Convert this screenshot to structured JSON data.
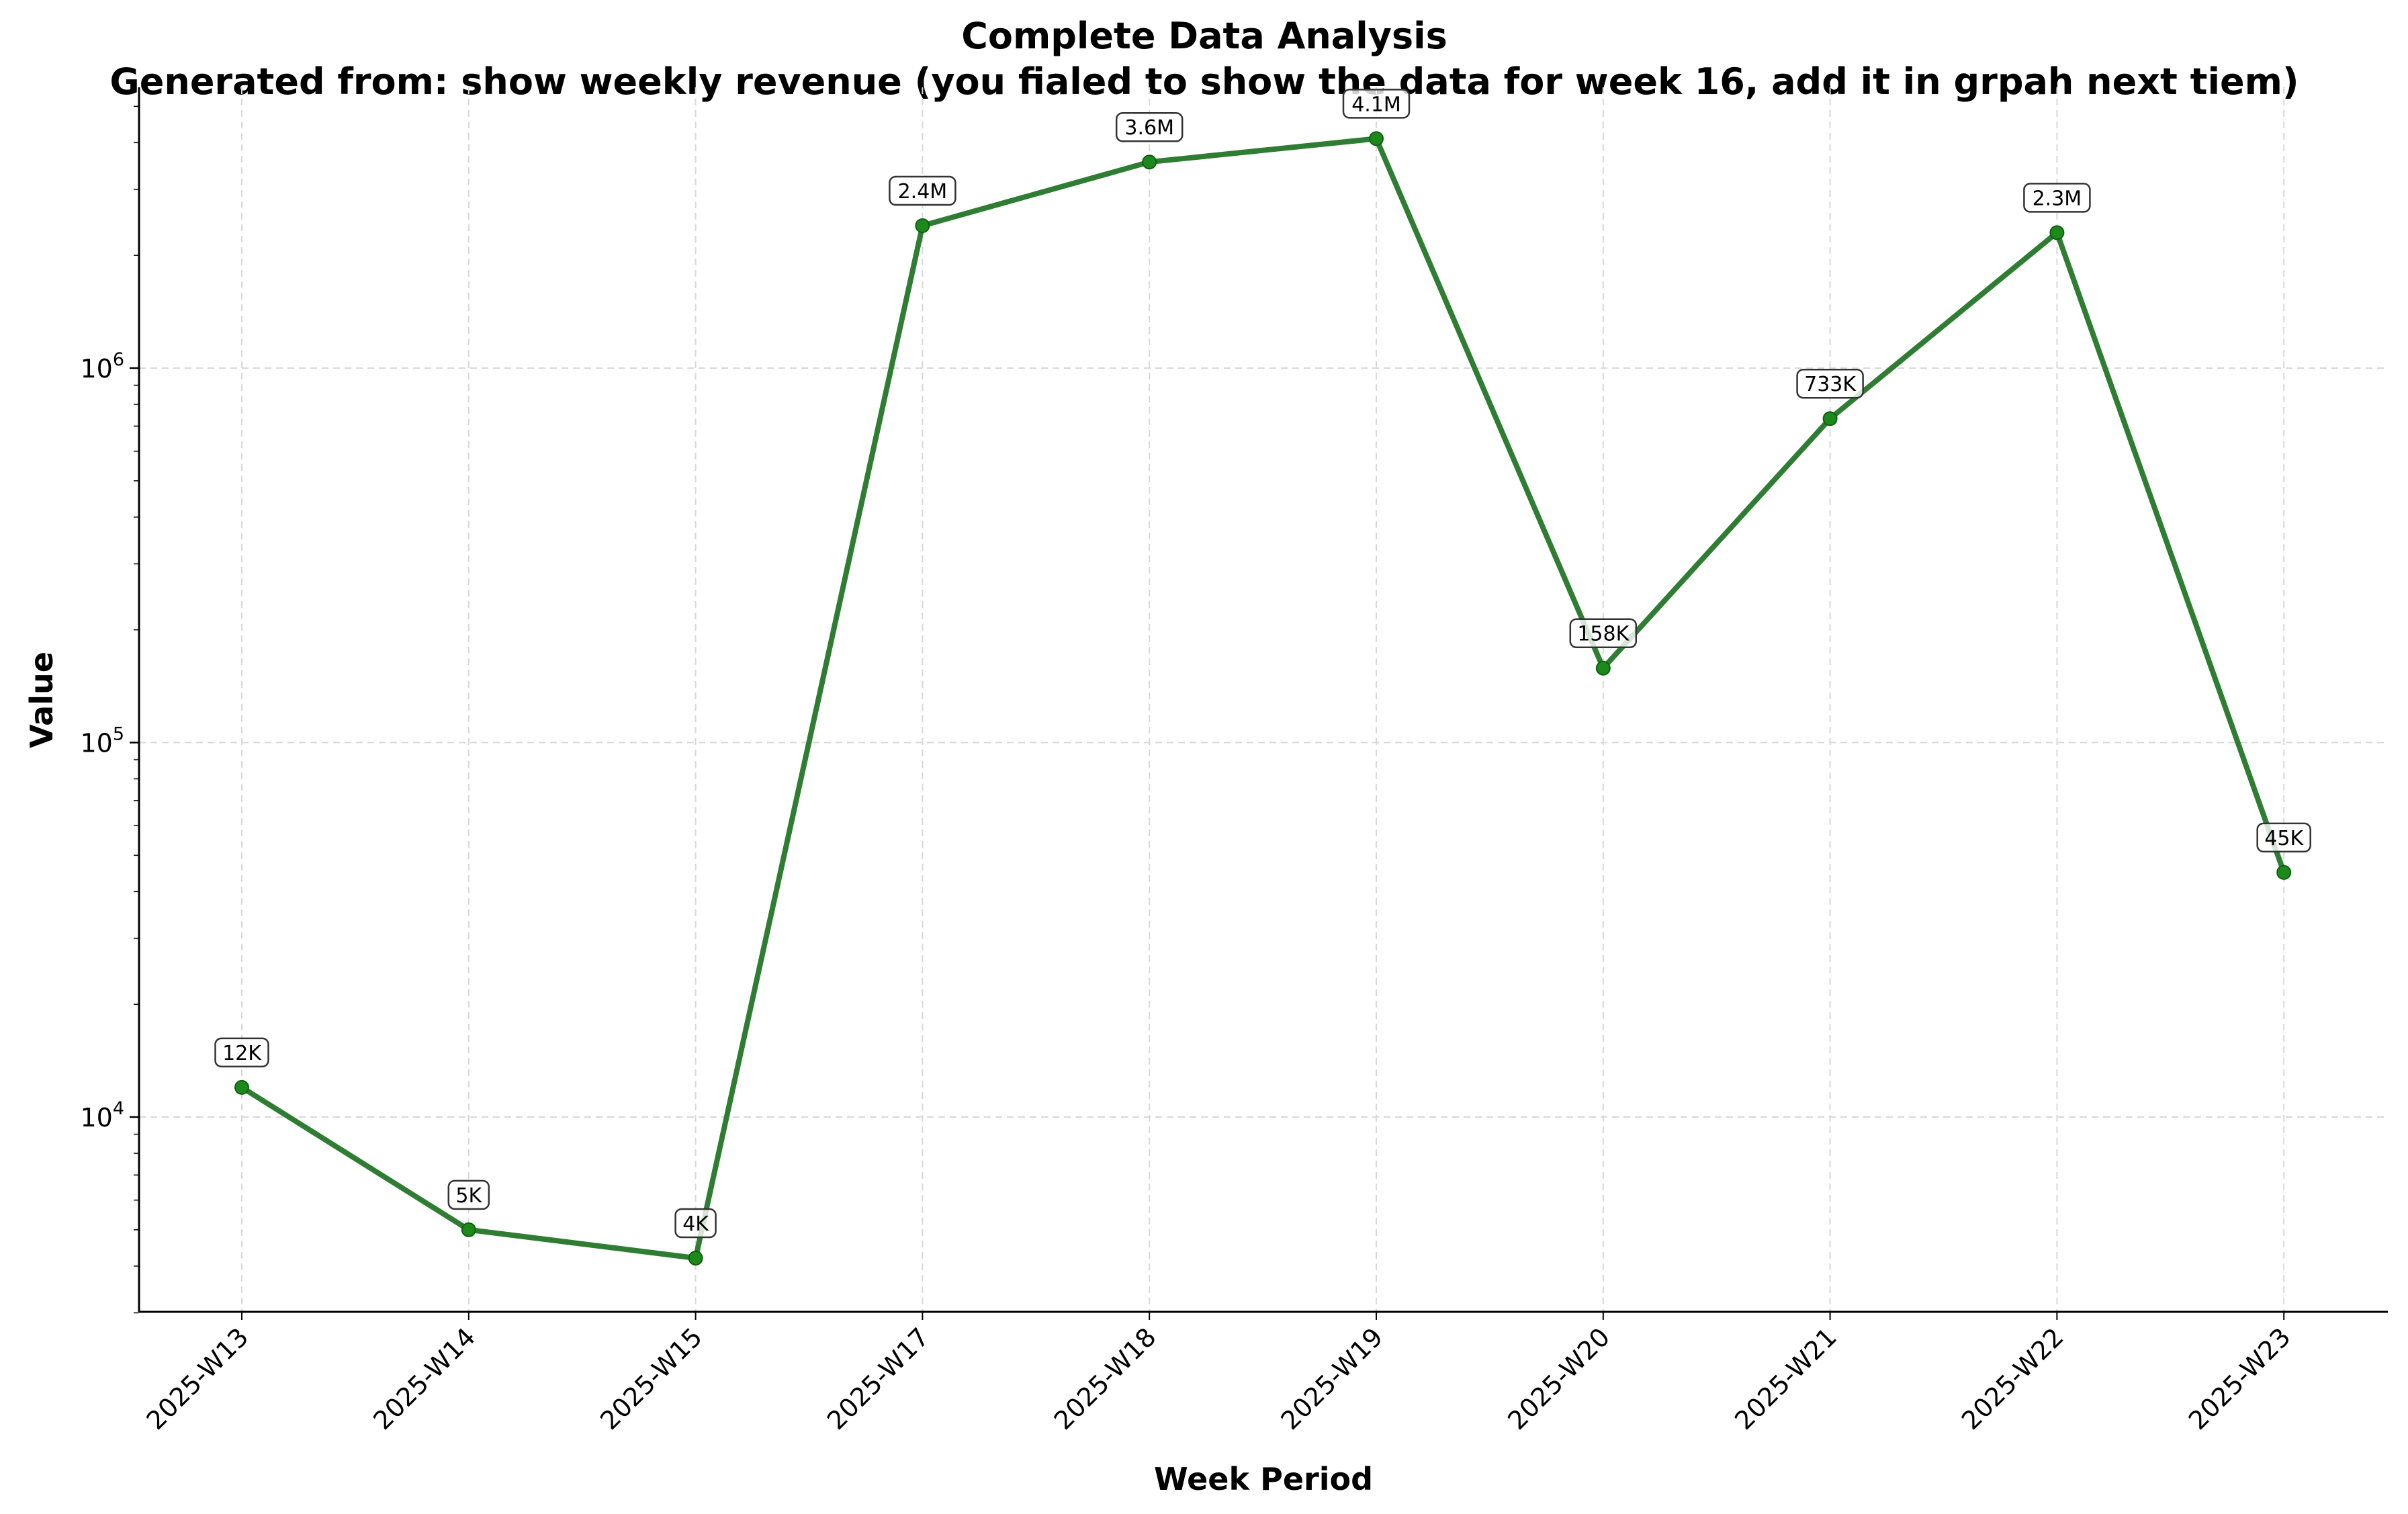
{
  "chart_data": {
    "type": "line",
    "title": "Complete Data Analysis",
    "subtitle": "Generated from: show weekly revenue (you fialed to show the data for week 16, add it in grpah next tiem)",
    "xlabel": "Week Period",
    "ylabel": "Value",
    "yscale": "log",
    "ylim": [
      3000,
      5000000
    ],
    "grid": true,
    "line_color": "#2e7d32",
    "marker_color": "#1b8a1b",
    "categories": [
      "2025-W13",
      "2025-W14",
      "2025-W15",
      "2025-W17",
      "2025-W18",
      "2025-W19",
      "2025-W20",
      "2025-W21",
      "2025-W22",
      "2025-W23"
    ],
    "values": [
      12000,
      5000,
      4200,
      2400000,
      3550000,
      4100000,
      158000,
      733000,
      2300000,
      45000
    ],
    "data_labels": [
      "12K",
      "5K",
      "4K",
      "2.4M",
      "3.6M",
      "4.1M",
      "158K",
      "733K",
      "2.3M",
      "45K"
    ],
    "y_ticks": [
      {
        "value": 10000,
        "base": "10",
        "exp": "4"
      },
      {
        "value": 100000,
        "base": "10",
        "exp": "5"
      },
      {
        "value": 1000000,
        "base": "10",
        "exp": "6"
      }
    ]
  }
}
